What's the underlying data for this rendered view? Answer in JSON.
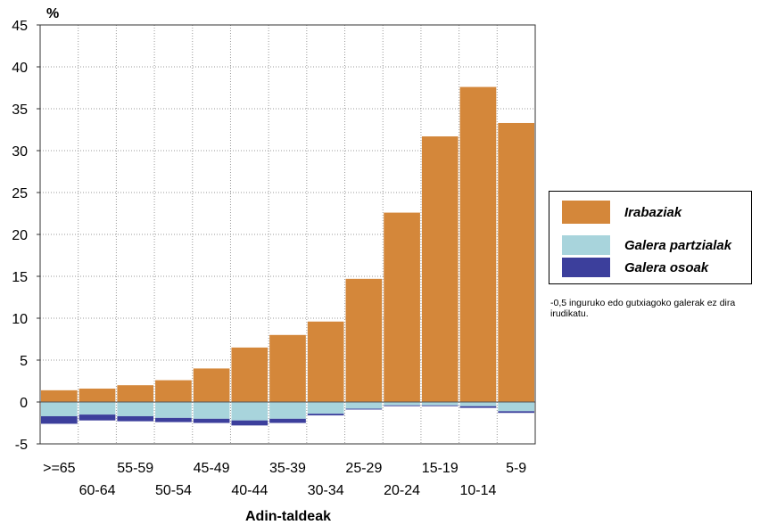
{
  "chart_data": {
    "type": "bar",
    "ylabel": "%",
    "xlabel": "Adin-taldeak",
    "ylim": [
      -5,
      45
    ],
    "yticks": [
      45,
      40,
      35,
      30,
      25,
      20,
      15,
      10,
      5,
      0,
      -5
    ],
    "grid": true,
    "legend_position": "right",
    "categories": [
      ">=65",
      "60-64",
      "55-59",
      "50-54",
      "45-49",
      "40-44",
      "35-39",
      "30-34",
      "25-29",
      "20-24",
      "15-19",
      "10-14",
      "5-9"
    ],
    "series": [
      {
        "name": "Irabaziak",
        "color": "#d4873a",
        "values": [
          1.4,
          1.6,
          2.0,
          2.6,
          4.0,
          6.5,
          8.0,
          9.6,
          14.7,
          22.6,
          31.7,
          37.6,
          33.3
        ]
      },
      {
        "name": "Galera partzialak",
        "color": "#a8d4dc",
        "values": [
          -1.7,
          -1.5,
          -1.7,
          -1.9,
          -2.0,
          -2.2,
          -2.0,
          -1.4,
          -0.8,
          -0.4,
          -0.4,
          -0.5,
          -1.1
        ]
      },
      {
        "name": "Galera osoak",
        "color": "#3c3f9c",
        "values": [
          -0.9,
          -0.7,
          -0.6,
          -0.5,
          -0.5,
          -0.6,
          -0.5,
          -0.2,
          -0.1,
          -0.1,
          -0.1,
          -0.2,
          -0.2
        ]
      }
    ]
  },
  "note": "-0,5 inguruko edo gutxiagoko galerak ez dira irudikatu."
}
